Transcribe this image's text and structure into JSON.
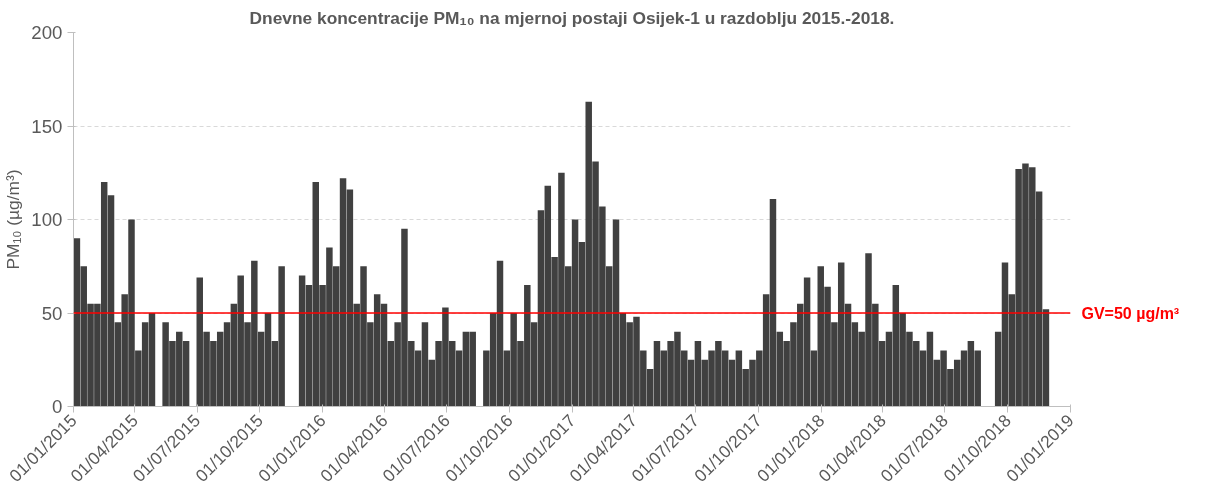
{
  "chart_data": {
    "type": "bar",
    "title": "Dnevne koncentracije PM₁₀ na mjernoj postaji Osijek-1 u razdoblju 2015.-2018.",
    "ylabel": "PM₁₀ (µg/m³)",
    "x": [
      "2015-01-01",
      "2015-01-11",
      "2015-01-21",
      "2015-01-31",
      "2015-02-10",
      "2015-02-20",
      "2015-03-02",
      "2015-03-12",
      "2015-03-22",
      "2015-04-01",
      "2015-04-11",
      "2015-04-21",
      "2015-05-01",
      "2015-05-11",
      "2015-05-21",
      "2015-05-31",
      "2015-06-10",
      "2015-06-20",
      "2015-06-30",
      "2015-07-10",
      "2015-07-20",
      "2015-07-30",
      "2015-08-09",
      "2015-08-19",
      "2015-08-29",
      "2015-09-08",
      "2015-09-18",
      "2015-09-28",
      "2015-10-08",
      "2015-10-18",
      "2015-10-28",
      "2015-11-07",
      "2015-11-17",
      "2015-11-27",
      "2015-12-07",
      "2015-12-17",
      "2015-12-27",
      "2016-01-06",
      "2016-01-16",
      "2016-01-26",
      "2016-02-05",
      "2016-02-15",
      "2016-02-25",
      "2016-03-06",
      "2016-03-16",
      "2016-03-26",
      "2016-04-05",
      "2016-04-15",
      "2016-04-25",
      "2016-05-05",
      "2016-05-15",
      "2016-05-25",
      "2016-06-04",
      "2016-06-14",
      "2016-06-24",
      "2016-07-04",
      "2016-07-14",
      "2016-07-24",
      "2016-08-03",
      "2016-08-13",
      "2016-08-23",
      "2016-09-02",
      "2016-09-12",
      "2016-09-22",
      "2016-10-02",
      "2016-10-12",
      "2016-10-22",
      "2016-11-01",
      "2016-11-11",
      "2016-11-21",
      "2016-12-01",
      "2016-12-11",
      "2016-12-21",
      "2016-12-31",
      "2017-01-10",
      "2017-01-20",
      "2017-01-30",
      "2017-02-09",
      "2017-02-19",
      "2017-03-01",
      "2017-03-11",
      "2017-03-21",
      "2017-03-31",
      "2017-04-10",
      "2017-04-20",
      "2017-04-30",
      "2017-05-10",
      "2017-05-20",
      "2017-05-30",
      "2017-06-09",
      "2017-06-19",
      "2017-06-29",
      "2017-07-09",
      "2017-07-19",
      "2017-07-29",
      "2017-08-08",
      "2017-08-18",
      "2017-08-28",
      "2017-09-07",
      "2017-09-17",
      "2017-09-27",
      "2017-10-07",
      "2017-10-17",
      "2017-10-27",
      "2017-11-06",
      "2017-11-16",
      "2017-11-26",
      "2017-12-06",
      "2017-12-16",
      "2017-12-26",
      "2018-01-05",
      "2018-01-15",
      "2018-01-25",
      "2018-02-04",
      "2018-02-14",
      "2018-02-24",
      "2018-03-06",
      "2018-03-16",
      "2018-03-26",
      "2018-04-05",
      "2018-04-15",
      "2018-04-25",
      "2018-05-05",
      "2018-05-15",
      "2018-05-25",
      "2018-06-04",
      "2018-06-14",
      "2018-06-24",
      "2018-07-04",
      "2018-07-14",
      "2018-07-24",
      "2018-08-03",
      "2018-08-13",
      "2018-08-23",
      "2018-09-02",
      "2018-09-12",
      "2018-09-22",
      "2018-10-02",
      "2018-10-12",
      "2018-10-22",
      "2018-11-01",
      "2018-11-11",
      "2018-11-21"
    ],
    "values": [
      90,
      75,
      55,
      55,
      120,
      113,
      45,
      60,
      100,
      30,
      45,
      50,
      null,
      45,
      35,
      40,
      35,
      null,
      69,
      40,
      35,
      40,
      45,
      55,
      70,
      45,
      78,
      40,
      50,
      35,
      75,
      null,
      null,
      70,
      65,
      120,
      65,
      85,
      75,
      122,
      116,
      55,
      75,
      45,
      60,
      55,
      35,
      45,
      95,
      35,
      30,
      45,
      25,
      35,
      53,
      35,
      30,
      40,
      40,
      null,
      30,
      50,
      78,
      30,
      50,
      35,
      65,
      45,
      105,
      118,
      80,
      125,
      75,
      100,
      88,
      163,
      131,
      107,
      75,
      100,
      50,
      45,
      48,
      30,
      20,
      35,
      30,
      35,
      40,
      30,
      25,
      35,
      25,
      30,
      35,
      30,
      25,
      30,
      20,
      25,
      30,
      60,
      111,
      40,
      35,
      45,
      55,
      69,
      30,
      75,
      64,
      45,
      77,
      55,
      45,
      40,
      82,
      55,
      35,
      40,
      65,
      50,
      40,
      35,
      30,
      40,
      25,
      30,
      20,
      25,
      30,
      35,
      30,
      null,
      null,
      40,
      77,
      60,
      127,
      130,
      128,
      115,
      52
    ],
    "color": "#404040",
    "ylim": [
      0,
      200
    ],
    "yticks": [
      0,
      50,
      100,
      150,
      200
    ],
    "xlim": [
      "2015-01-01",
      "2019-01-01"
    ],
    "xticks": [
      {
        "value": "2015-01-01",
        "label": "01/01/2015"
      },
      {
        "value": "2015-04-01",
        "label": "01/04/2015"
      },
      {
        "value": "2015-07-01",
        "label": "01/07/2015"
      },
      {
        "value": "2015-10-01",
        "label": "01/10/2015"
      },
      {
        "value": "2016-01-01",
        "label": "01/01/2016"
      },
      {
        "value": "2016-04-01",
        "label": "01/04/2016"
      },
      {
        "value": "2016-07-01",
        "label": "01/07/2016"
      },
      {
        "value": "2016-10-01",
        "label": "01/10/2016"
      },
      {
        "value": "2017-01-01",
        "label": "01/01/2017"
      },
      {
        "value": "2017-04-01",
        "label": "01/04/2017"
      },
      {
        "value": "2017-07-01",
        "label": "01/07/2017"
      },
      {
        "value": "2017-10-01",
        "label": "01/10/2017"
      },
      {
        "value": "2018-01-01",
        "label": "01/01/2018"
      },
      {
        "value": "2018-04-01",
        "label": "01/04/2018"
      },
      {
        "value": "2018-07-01",
        "label": "01/07/2018"
      },
      {
        "value": "2018-10-01",
        "label": "01/10/2018"
      },
      {
        "value": "2019-01-01",
        "label": "01/01/2019"
      }
    ],
    "grid": "y",
    "ref_lines": [
      {
        "axis": "y",
        "value": 50,
        "label": "GV=50 µg/m³",
        "color": "#ff0000"
      }
    ]
  }
}
